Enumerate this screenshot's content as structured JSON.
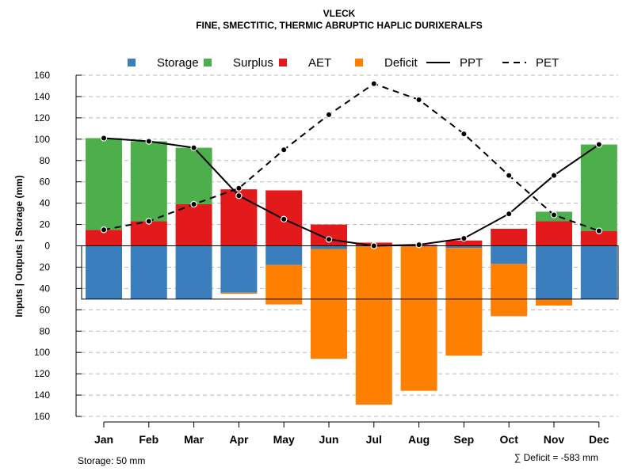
{
  "chart_data": {
    "type": "bar",
    "title": "VLECK",
    "subtitle": "FINE, SMECTITIC, THERMIC ABRUPTIC HAPLIC DURIXERALFS",
    "ylabel": "Inputs | Outputs | Storage   (mm)",
    "xlabel": "",
    "ylim": [
      -160,
      160
    ],
    "yticks": [
      160,
      140,
      120,
      100,
      80,
      60,
      40,
      20,
      0,
      -20,
      -40,
      -60,
      -80,
      -100,
      -120,
      -140,
      -160
    ],
    "ytick_labels": [
      "160",
      "140",
      "120",
      "100",
      "80",
      "60",
      "40",
      "20",
      "0",
      "20",
      "40",
      "60",
      "80",
      "100",
      "120",
      "140",
      "160"
    ],
    "grid": true,
    "legend_position": "top",
    "categories": [
      "Jan",
      "Feb",
      "Mar",
      "Apr",
      "May",
      "Jun",
      "Jul",
      "Aug",
      "Sep",
      "Oct",
      "Nov",
      "Dec"
    ],
    "series": [
      {
        "name": "Storage",
        "kind": "bar-down",
        "color": "#3a7ebd",
        "values": [
          50,
          50,
          50,
          44,
          18,
          3,
          0,
          0,
          2,
          17,
          50,
          50
        ]
      },
      {
        "name": "Surplus",
        "kind": "bar-up-stack",
        "color": "#4caf4c",
        "values": [
          86,
          75,
          53,
          0,
          0,
          0,
          0,
          0,
          0,
          0,
          9,
          81
        ]
      },
      {
        "name": "AET",
        "kind": "bar-up",
        "color": "#e31a1c",
        "values": [
          15,
          23,
          39,
          53,
          52,
          20,
          3,
          1,
          5,
          16,
          23,
          14
        ]
      },
      {
        "name": "Deficit",
        "kind": "bar-down-stack",
        "color": "#ff8000",
        "values": [
          0,
          0,
          0,
          1,
          37,
          103,
          149,
          136,
          101,
          49,
          6,
          0
        ]
      },
      {
        "name": "PPT",
        "kind": "line",
        "dash": "solid",
        "color": "#000000",
        "values": [
          101,
          98,
          92,
          47,
          25,
          6,
          0,
          1,
          7,
          30,
          66,
          95
        ]
      },
      {
        "name": "PET",
        "kind": "line",
        "dash": "dashed",
        "color": "#000000",
        "values": [
          15,
          23,
          39,
          54,
          90,
          123,
          152,
          137,
          105,
          66,
          29,
          14
        ]
      }
    ],
    "storage_capacity": 50,
    "annotations": {
      "storage_label": "Storage: 50 mm",
      "deficit_label": "∑ Deficit = -583 mm"
    }
  }
}
